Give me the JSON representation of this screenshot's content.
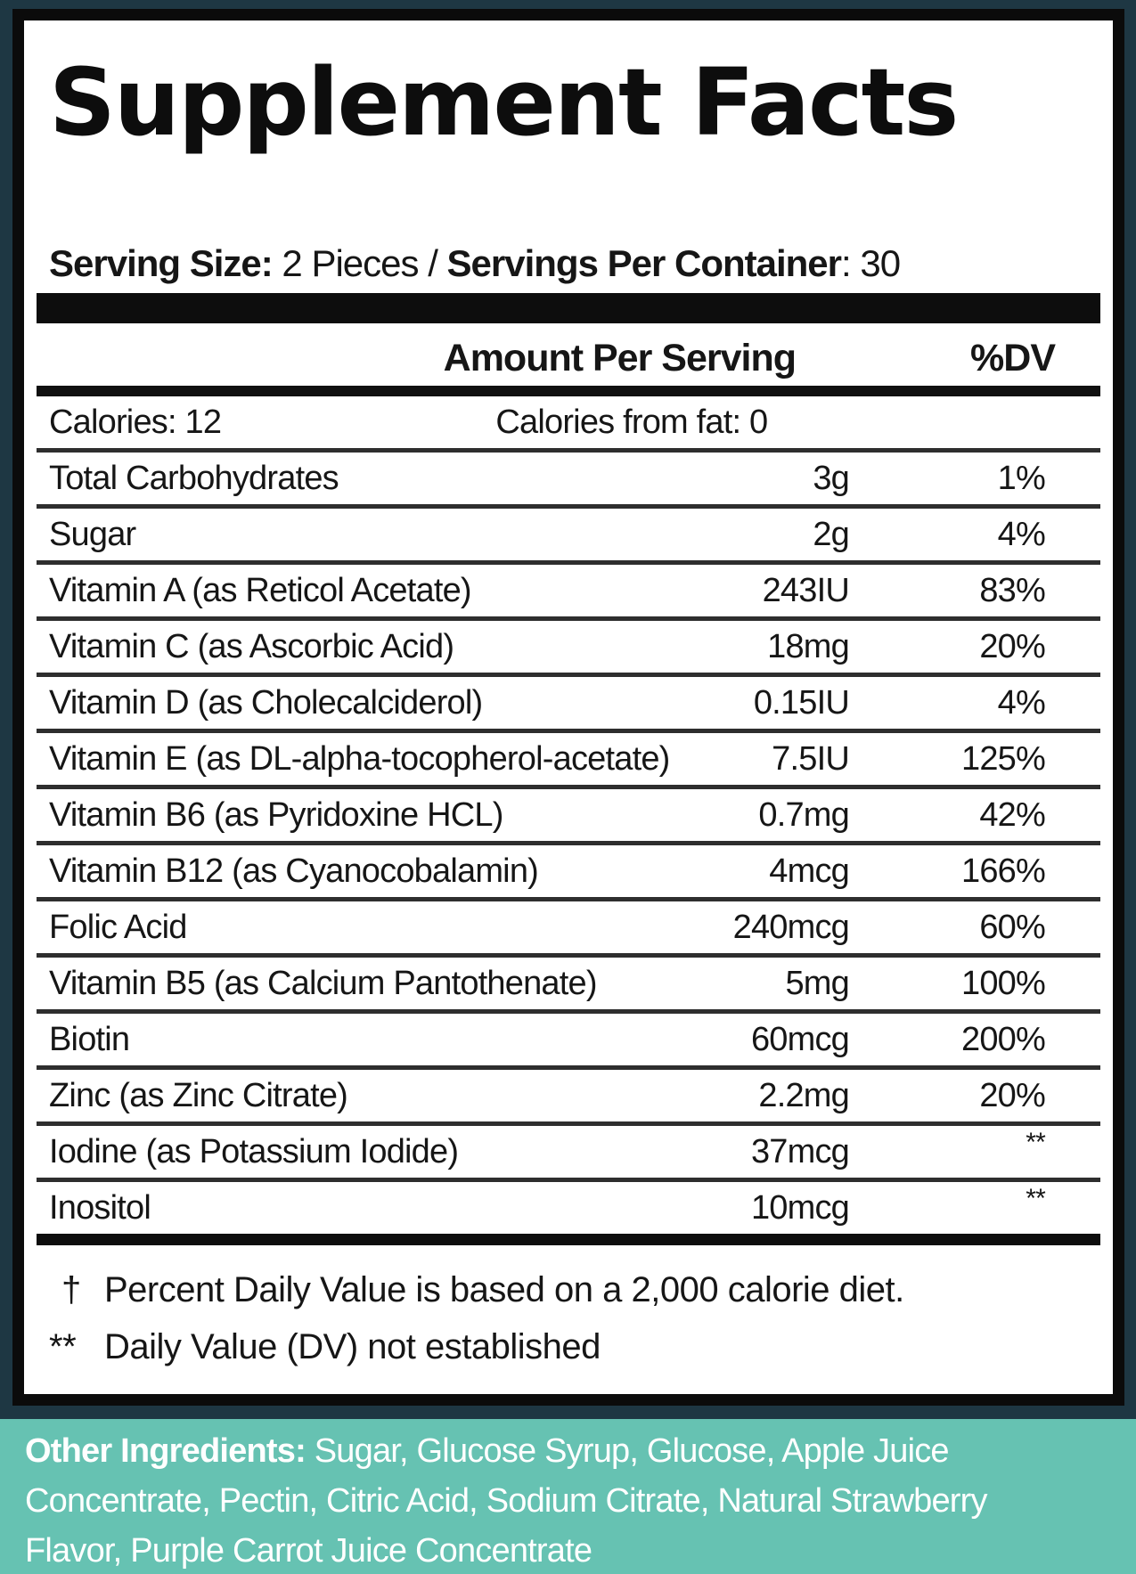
{
  "colors": {
    "bg_outer": "#1e3743",
    "footer_bg": "#66c2b2",
    "label_bg": "#ffffff",
    "frame": "#0b0b0b",
    "rule": "#2e2e2e",
    "text": "#161616",
    "footer_text": "#ffffff"
  },
  "label": {
    "title": "Supplement Facts",
    "serving_line": {
      "bold1": "Serving Size:",
      "reg1": " 2 Pieces / ",
      "bold2": "Servings Per Container",
      "reg2": ": 30"
    },
    "columns": {
      "amount": "Amount Per Serving",
      "dv": "%DV"
    },
    "calories": {
      "left": "Calories: 12",
      "right": "Calories from fat: 0"
    },
    "rows": [
      {
        "name": "Total Carbohydrates",
        "amount": "3g",
        "dv": "1%"
      },
      {
        "name": "Sugar",
        "amount": "2g",
        "dv": "4%"
      },
      {
        "name": "Vitamin A (as Reticol Acetate)",
        "amount": "243IU",
        "dv": "83%"
      },
      {
        "name": "Vitamin C (as Ascorbic Acid)",
        "amount": "18mg",
        "dv": "20%"
      },
      {
        "name": "Vitamin D (as Cholecalciderol)",
        "amount": "0.15IU",
        "dv": "4%"
      },
      {
        "name": "Vitamin E (as DL-alpha-tocopherol-acetate)",
        "amount": "7.5IU",
        "dv": "125%"
      },
      {
        "name": "Vitamin B6 (as Pyridoxine HCL)",
        "amount": "0.7mg",
        "dv": "42%"
      },
      {
        "name": "Vitamin B12 (as Cyanocobalamin)",
        "amount": "4mcg",
        "dv": "166%"
      },
      {
        "name": "Folic Acid",
        "amount": "240mcg",
        "dv": "60%"
      },
      {
        "name": "Vitamin B5 (as Calcium Pantothenate)",
        "amount": "5mg",
        "dv": "100%"
      },
      {
        "name": "Biotin",
        "amount": "60mcg",
        "dv": "200%"
      },
      {
        "name": "Zinc (as Zinc Citrate)",
        "amount": "2.2mg",
        "dv": "20%"
      },
      {
        "name": "Iodine (as Potassium Iodide)",
        "amount": "37mcg",
        "dv": "**"
      },
      {
        "name": "Inositol",
        "amount": "10mcg",
        "dv": "**"
      }
    ],
    "footnotes": [
      {
        "marker": "†",
        "text": "Percent Daily Value is based on a 2,000 calorie diet."
      },
      {
        "marker": "**",
        "text": "Daily Value (DV) not established"
      }
    ]
  },
  "footer": {
    "bold": "Other Ingredients:",
    "text": " Sugar, Glucose Syrup, Glucose, Apple Juice Concentrate, Pectin, Citric Acid, Sodium Citrate, Natural Strawberry Flavor, Purple Carrot Juice Concentrate"
  }
}
